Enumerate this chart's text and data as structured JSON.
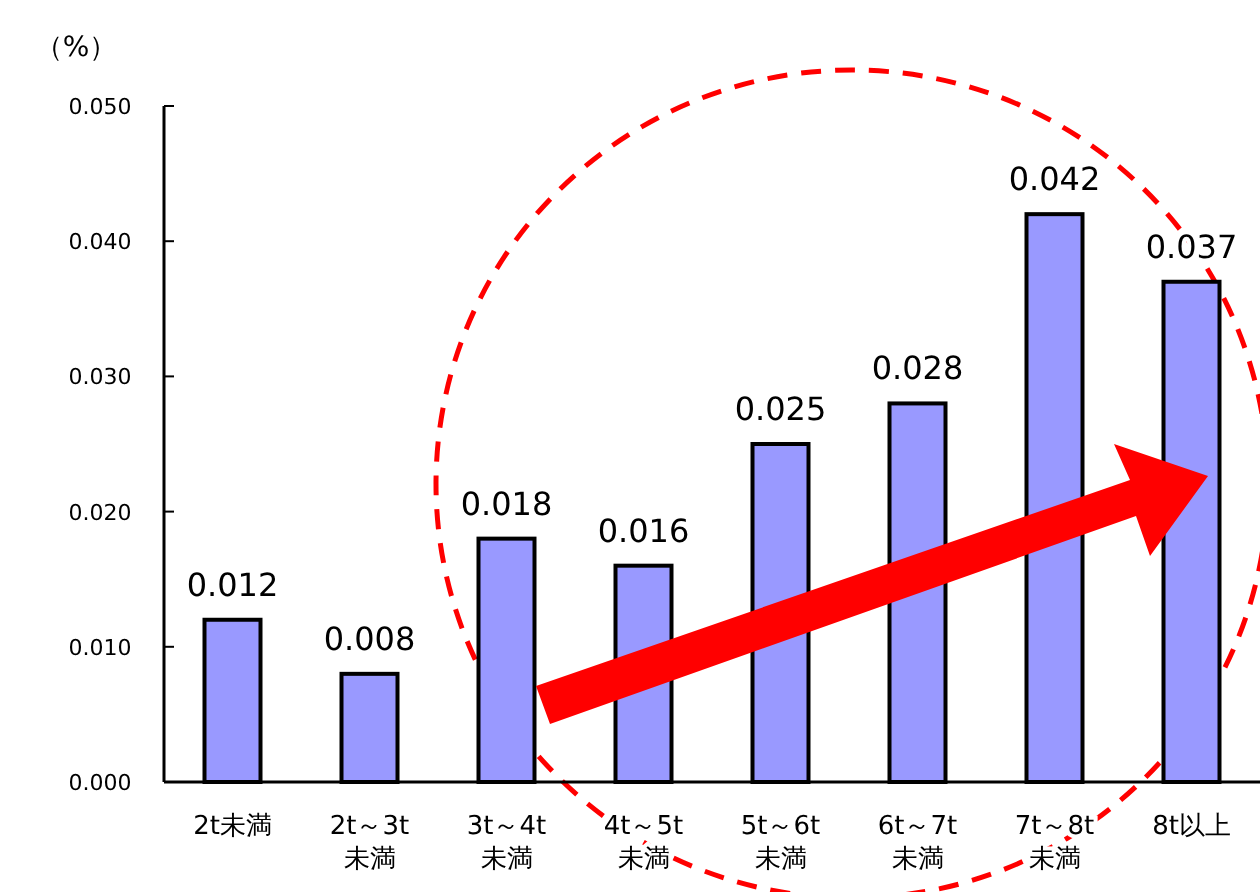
{
  "chart_data": {
    "type": "bar",
    "ylabel": "（%）",
    "categories": [
      "2t未満",
      "2t～3t\n未満",
      "3t～4t\n未満",
      "4t～5t\n未満",
      "5t～6t\n未満",
      "6t～7t\n未満",
      "7t～8t\n未満",
      "8t以上"
    ],
    "values": [
      0.012,
      0.008,
      0.018,
      0.016,
      0.025,
      0.028,
      0.042,
      0.037
    ],
    "color": "#9999ff",
    "data_labels": true,
    "ylim": [
      0,
      0.05
    ],
    "yticks": [
      {
        "value": 0,
        "label": "0.000"
      },
      {
        "value": 0.01,
        "label": "0.010"
      },
      {
        "value": 0.02,
        "label": "0.020"
      },
      {
        "value": 0.03,
        "label": "0.030"
      },
      {
        "value": 0.04,
        "label": "0.040"
      },
      {
        "value": 0.05,
        "label": "0.050"
      }
    ]
  }
}
